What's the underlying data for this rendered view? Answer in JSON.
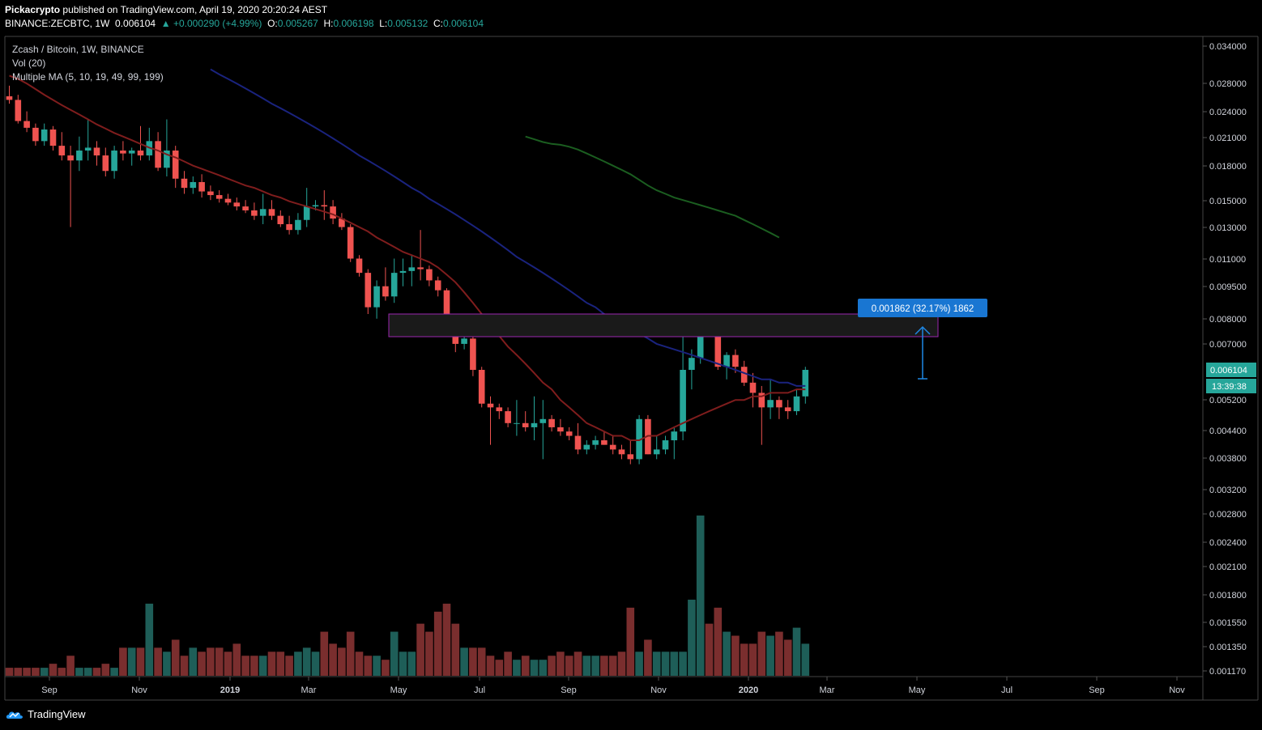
{
  "header": {
    "publisher": "Pickacrypto",
    "published_text": "published on TradingView.com, April 19, 2020 20:20:24 AEST",
    "symbol": "BINANCE:ZECBTC, 1W",
    "last": "0.006104",
    "change": "▲ +0.000290 (+4.99%)",
    "o_label": "O:",
    "o": "0.005267",
    "h_label": "H:",
    "h": "0.006198",
    "l_label": "L:",
    "l": "0.005132",
    "c_label": "C:",
    "c": "0.006104"
  },
  "legend": {
    "title": "Zcash / Bitcoin, 1W, BINANCE",
    "vol": "Vol (20)",
    "ma": "Multiple MA (5, 10, 19, 49, 99, 199)"
  },
  "measure_label": "0.001862 (32.17%) 1862",
  "price_badge": "0.006104",
  "timer_badge": "13:39:38",
  "footer": {
    "brand": "TradingView"
  },
  "colors": {
    "up": "#26a69a",
    "down": "#ef5350",
    "vol_up": "#1e5e58",
    "vol_down": "#7a2e2e",
    "ma_red": "#7f1d1d",
    "ma_blue": "#1a237e",
    "ma_green": "#1b5e20",
    "zone_border": "#9c27b0",
    "measure": "#1e88e5"
  },
  "chart_data": {
    "type": "candlestick",
    "title": "Zcash / Bitcoin, 1W, BINANCE",
    "y_scale": "log",
    "y_ticks": [
      "0.034000",
      "0.028000",
      "0.024000",
      "0.021000",
      "0.018000",
      "0.015000",
      "0.013000",
      "0.011000",
      "0.009500",
      "0.008000",
      "0.007000",
      "0.005200",
      "0.004400",
      "0.003800",
      "0.003200",
      "0.002800",
      "0.002400",
      "0.002100",
      "0.001800",
      "0.001550",
      "0.001350",
      "0.001170"
    ],
    "x_ticks": [
      "Sep",
      "Nov",
      "2019",
      "Mar",
      "May",
      "Jul",
      "Sep",
      "Nov",
      "2020",
      "Mar",
      "May",
      "Jul",
      "Sep",
      "Nov"
    ],
    "zone": {
      "low": 0.0074,
      "high": 0.0083
    },
    "measure": {
      "from": 0.0058,
      "to": 0.0078
    },
    "candles": [
      [
        0.026,
        0.0275,
        0.025,
        0.0255
      ],
      [
        0.0255,
        0.0262,
        0.0225,
        0.0228
      ],
      [
        0.0228,
        0.024,
        0.0215,
        0.022
      ],
      [
        0.022,
        0.0225,
        0.02,
        0.0205
      ],
      [
        0.0205,
        0.0225,
        0.02,
        0.0218
      ],
      [
        0.0218,
        0.0222,
        0.0195,
        0.02
      ],
      [
        0.02,
        0.0215,
        0.0185,
        0.019
      ],
      [
        0.019,
        0.02,
        0.013,
        0.0185
      ],
      [
        0.0185,
        0.021,
        0.0175,
        0.0195
      ],
      [
        0.0195,
        0.023,
        0.0185,
        0.0198
      ],
      [
        0.0198,
        0.0205,
        0.018,
        0.019
      ],
      [
        0.019,
        0.0198,
        0.017,
        0.0175
      ],
      [
        0.0175,
        0.02,
        0.0168,
        0.0195
      ],
      [
        0.0195,
        0.0205,
        0.0185,
        0.0192
      ],
      [
        0.0192,
        0.0198,
        0.018,
        0.0195
      ],
      [
        0.0195,
        0.0222,
        0.0185,
        0.019
      ],
      [
        0.019,
        0.022,
        0.0185,
        0.0205
      ],
      [
        0.0205,
        0.0215,
        0.0175,
        0.0178
      ],
      [
        0.0178,
        0.023,
        0.017,
        0.0195
      ],
      [
        0.0195,
        0.02,
        0.016,
        0.0168
      ],
      [
        0.0168,
        0.0175,
        0.0155,
        0.016
      ],
      [
        0.016,
        0.017,
        0.0155,
        0.0165
      ],
      [
        0.0165,
        0.0172,
        0.0152,
        0.0157
      ],
      [
        0.0157,
        0.0162,
        0.015,
        0.0154
      ],
      [
        0.0154,
        0.0158,
        0.0148,
        0.0151
      ],
      [
        0.0151,
        0.0155,
        0.0146,
        0.0148
      ],
      [
        0.0148,
        0.0152,
        0.0142,
        0.0145
      ],
      [
        0.0145,
        0.015,
        0.014,
        0.0142
      ],
      [
        0.0142,
        0.0148,
        0.0135,
        0.0138
      ],
      [
        0.0138,
        0.0155,
        0.0132,
        0.0143
      ],
      [
        0.0143,
        0.015,
        0.0135,
        0.0138
      ],
      [
        0.0138,
        0.0142,
        0.013,
        0.0132
      ],
      [
        0.0132,
        0.0138,
        0.0125,
        0.0128
      ],
      [
        0.0128,
        0.014,
        0.0125,
        0.0135
      ],
      [
        0.0135,
        0.016,
        0.013,
        0.0145
      ],
      [
        0.0145,
        0.015,
        0.0142,
        0.0146
      ],
      [
        0.0146,
        0.0158,
        0.0135,
        0.0145
      ],
      [
        0.0145,
        0.015,
        0.0132,
        0.0136
      ],
      [
        0.0136,
        0.014,
        0.0128,
        0.013
      ],
      [
        0.013,
        0.0132,
        0.0108,
        0.011
      ],
      [
        0.011,
        0.0112,
        0.01,
        0.0102
      ],
      [
        0.0102,
        0.0104,
        0.0082,
        0.0085
      ],
      [
        0.0085,
        0.0098,
        0.008,
        0.0095
      ],
      [
        0.0095,
        0.0105,
        0.0088,
        0.009
      ],
      [
        0.009,
        0.011,
        0.0087,
        0.0102
      ],
      [
        0.0102,
        0.011,
        0.0095,
        0.0103
      ],
      [
        0.0103,
        0.0112,
        0.0095,
        0.0105
      ],
      [
        0.0105,
        0.0128,
        0.0098,
        0.0104
      ],
      [
        0.0104,
        0.0106,
        0.0095,
        0.0098
      ],
      [
        0.0098,
        0.01,
        0.009,
        0.0093
      ],
      [
        0.0093,
        0.0094,
        0.0076,
        0.0078
      ],
      [
        0.0078,
        0.008,
        0.0067,
        0.007
      ],
      [
        0.007,
        0.0074,
        0.0068,
        0.0072
      ],
      [
        0.0072,
        0.0073,
        0.0059,
        0.0061
      ],
      [
        0.0061,
        0.0062,
        0.005,
        0.0051
      ],
      [
        0.0051,
        0.0053,
        0.0041,
        0.005
      ],
      [
        0.005,
        0.0051,
        0.0047,
        0.0049
      ],
      [
        0.0049,
        0.005,
        0.0045,
        0.0046
      ],
      [
        0.0046,
        0.0052,
        0.0043,
        0.0046
      ],
      [
        0.0046,
        0.0049,
        0.0044,
        0.0045
      ],
      [
        0.0045,
        0.0053,
        0.0042,
        0.0046
      ],
      [
        0.0046,
        0.0052,
        0.0038,
        0.0047
      ],
      [
        0.0047,
        0.0048,
        0.0044,
        0.0045
      ],
      [
        0.0045,
        0.0047,
        0.0043,
        0.0044
      ],
      [
        0.0044,
        0.0045,
        0.0042,
        0.0043
      ],
      [
        0.0043,
        0.0046,
        0.0039,
        0.004
      ],
      [
        0.004,
        0.0042,
        0.0039,
        0.0041
      ],
      [
        0.0041,
        0.0043,
        0.004,
        0.0042
      ],
      [
        0.0042,
        0.0044,
        0.0041,
        0.0041
      ],
      [
        0.0041,
        0.0043,
        0.0039,
        0.004
      ],
      [
        0.004,
        0.0041,
        0.0038,
        0.0039
      ],
      [
        0.0039,
        0.0042,
        0.0037,
        0.0038
      ],
      [
        0.0038,
        0.0048,
        0.0037,
        0.0047
      ],
      [
        0.0047,
        0.0048,
        0.0039,
        0.0039
      ],
      [
        0.0039,
        0.0043,
        0.0038,
        0.004
      ],
      [
        0.004,
        0.0043,
        0.0039,
        0.0042
      ],
      [
        0.0042,
        0.0045,
        0.0038,
        0.0044
      ],
      [
        0.0044,
        0.0074,
        0.0042,
        0.0061
      ],
      [
        0.0061,
        0.0068,
        0.0055,
        0.0065
      ],
      [
        0.0065,
        0.0077,
        0.0063,
        0.0075
      ],
      [
        0.0075,
        0.0077,
        0.0073,
        0.0074
      ],
      [
        0.0074,
        0.0076,
        0.0061,
        0.0062
      ],
      [
        0.0062,
        0.0067,
        0.0058,
        0.0066
      ],
      [
        0.0066,
        0.0068,
        0.006,
        0.0062
      ],
      [
        0.0062,
        0.0064,
        0.0056,
        0.0057
      ],
      [
        0.0057,
        0.006,
        0.005,
        0.0054
      ],
      [
        0.0054,
        0.0056,
        0.0041,
        0.005
      ],
      [
        0.005,
        0.0058,
        0.0047,
        0.0052
      ],
      [
        0.0052,
        0.0053,
        0.0047,
        0.005
      ],
      [
        0.005,
        0.0052,
        0.0047,
        0.0049
      ],
      [
        0.0049,
        0.0055,
        0.0048,
        0.0053
      ],
      [
        0.0053,
        0.0062,
        0.0051,
        0.0061
      ]
    ],
    "volume": [
      2,
      2,
      2,
      2,
      2,
      3,
      2,
      5,
      2,
      2,
      2,
      3,
      2,
      7,
      7,
      7,
      18,
      7,
      6,
      9,
      5,
      7,
      6,
      7,
      7,
      6,
      8,
      5,
      5,
      5,
      6,
      6,
      5,
      6,
      7,
      6,
      11,
      8,
      7,
      11,
      6,
      5,
      5,
      4,
      11,
      6,
      6,
      13,
      11,
      16,
      18,
      13,
      7,
      7,
      7,
      5,
      4,
      6,
      4,
      5,
      4,
      4,
      5,
      6,
      5,
      6,
      5,
      5,
      5,
      5,
      6,
      17,
      6,
      9,
      6,
      6,
      6,
      6,
      19,
      40,
      13,
      17,
      11,
      10,
      8,
      8,
      11,
      10,
      11,
      9,
      12,
      8
    ],
    "ma_red": [
      0.029,
      0.0285,
      0.0278,
      0.027,
      0.0262,
      0.0255,
      0.0248,
      0.0242,
      0.0236,
      0.023,
      0.0224,
      0.0219,
      0.0214,
      0.021,
      0.0206,
      0.0202,
      0.0198,
      0.0195,
      0.0191,
      0.0188,
      0.0184,
      0.018,
      0.0177,
      0.0174,
      0.0171,
      0.0168,
      0.0165,
      0.0162,
      0.016,
      0.0157,
      0.0154,
      0.0152,
      0.0149,
      0.0147,
      0.0145,
      0.0143,
      0.0141,
      0.0139,
      0.0136,
      0.0133,
      0.013,
      0.0127,
      0.0123,
      0.012,
      0.0117,
      0.0114,
      0.0112,
      0.011,
      0.0108,
      0.0105,
      0.0101,
      0.0097,
      0.0092,
      0.0087,
      0.0082,
      0.0077,
      0.0073,
      0.0069,
      0.0066,
      0.0063,
      0.006,
      0.0057,
      0.0055,
      0.0052,
      0.005,
      0.0048,
      0.0046,
      0.0045,
      0.0044,
      0.0043,
      0.0043,
      0.0042,
      0.0042,
      0.0043,
      0.0043,
      0.0044,
      0.0045,
      0.0046,
      0.0047,
      0.0048,
      0.0049,
      0.005,
      0.0051,
      0.0052,
      0.0052,
      0.0053,
      0.0053,
      0.0054,
      0.0054,
      0.0054,
      0.0055,
      0.0055
    ],
    "ma_blue": [
      null,
      null,
      null,
      null,
      null,
      null,
      null,
      null,
      null,
      null,
      null,
      null,
      null,
      null,
      null,
      null,
      null,
      null,
      null,
      null,
      null,
      null,
      null,
      0.03,
      0.0292,
      0.0285,
      0.0278,
      0.0271,
      0.0264,
      0.0257,
      0.025,
      0.0244,
      0.0238,
      0.0232,
      0.0226,
      0.022,
      0.0214,
      0.0208,
      0.0202,
      0.0196,
      0.019,
      0.0185,
      0.018,
      0.0175,
      0.017,
      0.0165,
      0.016,
      0.0156,
      0.0151,
      0.0147,
      0.0143,
      0.0139,
      0.0135,
      0.0131,
      0.0127,
      0.0123,
      0.0119,
      0.0115,
      0.0111,
      0.0108,
      0.0105,
      0.0102,
      0.0099,
      0.0096,
      0.0093,
      0.009,
      0.0087,
      0.0085,
      0.0082,
      0.008,
      0.0078,
      0.0076,
      0.0074,
      0.0072,
      0.007,
      0.0069,
      0.0068,
      0.0067,
      0.0066,
      0.0065,
      0.0064,
      0.0063,
      0.0062,
      0.0061,
      0.006,
      0.0059,
      0.0058,
      0.0058,
      0.0057,
      0.0057,
      0.0056,
      0.0056
    ],
    "ma_green": [
      null,
      null,
      null,
      null,
      null,
      null,
      null,
      null,
      null,
      null,
      null,
      null,
      null,
      null,
      null,
      null,
      null,
      null,
      null,
      null,
      null,
      null,
      null,
      null,
      null,
      null,
      null,
      null,
      null,
      null,
      null,
      null,
      null,
      null,
      null,
      null,
      null,
      null,
      null,
      null,
      null,
      null,
      null,
      null,
      null,
      null,
      null,
      null,
      null,
      null,
      null,
      null,
      null,
      null,
      null,
      null,
      null,
      null,
      null,
      0.021,
      0.0207,
      0.0204,
      0.0202,
      0.0201,
      0.0199,
      0.0196,
      0.0192,
      0.0188,
      0.0184,
      0.018,
      0.0176,
      0.0172,
      0.0167,
      0.0162,
      0.0158,
      0.0155,
      0.0152,
      0.015,
      0.0148,
      0.0146,
      0.0144,
      0.0142,
      0.014,
      0.0138,
      0.0135,
      0.0132,
      0.0129,
      0.0126,
      0.0123,
      null,
      null,
      null
    ]
  }
}
